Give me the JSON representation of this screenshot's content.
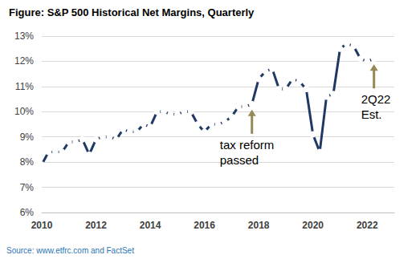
{
  "chart_data": {
    "type": "line",
    "title": "Figure: S&P 500 Historical Net Margins, Quarterly",
    "source": "Source: www.etfrc.com and FactSet",
    "x": [
      2010,
      2010.25,
      2010.5,
      2010.75,
      2011,
      2011.25,
      2011.5,
      2011.75,
      2012,
      2012.25,
      2012.5,
      2012.75,
      2013,
      2013.25,
      2013.5,
      2013.75,
      2014,
      2014.25,
      2014.5,
      2014.75,
      2015,
      2015.25,
      2015.5,
      2015.75,
      2016,
      2016.25,
      2016.5,
      2016.75,
      2017,
      2017.25,
      2017.5,
      2017.75,
      2018,
      2018.25,
      2018.5,
      2018.75,
      2019,
      2019.25,
      2019.5,
      2019.75,
      2020,
      2020.25,
      2020.5,
      2020.75,
      2021,
      2021.25,
      2021.5,
      2021.75,
      2022,
      2022.25
    ],
    "values": [
      7.9,
      8.4,
      8.4,
      8.4,
      8.8,
      8.8,
      8.9,
      8.3,
      8.9,
      9.0,
      9.0,
      8.9,
      9.3,
      9.2,
      9.2,
      9.5,
      9.4,
      10.0,
      10.0,
      9.9,
      9.9,
      10.0,
      10.0,
      9.5,
      9.2,
      9.5,
      9.5,
      9.6,
      9.8,
      10.2,
      10.2,
      10.3,
      11.3,
      11.6,
      11.7,
      10.9,
      10.9,
      11.3,
      11.2,
      10.9,
      9.1,
      8.4,
      10.6,
      10.7,
      12.5,
      12.7,
      12.6,
      12.1,
      12.0,
      12.1
    ],
    "color": "#1f3864",
    "marker": "circle",
    "xlim": [
      2010,
      2023
    ],
    "xticks": [
      2010,
      2012,
      2014,
      2016,
      2018,
      2020,
      2022
    ],
    "ylim": [
      6,
      13
    ],
    "yticks": [
      {
        "value": 6,
        "label": "6%"
      },
      {
        "value": 7,
        "label": "7%"
      },
      {
        "value": 8,
        "label": "8%"
      },
      {
        "value": 9,
        "label": "9%"
      },
      {
        "value": 10,
        "label": "10%"
      },
      {
        "value": 11,
        "label": "11%"
      },
      {
        "value": 12,
        "label": "12%"
      },
      {
        "value": 13,
        "label": "13%"
      }
    ],
    "grid": true,
    "annotations": [
      {
        "text": "tax reform\npassed",
        "x": 2017.75
      },
      {
        "text": "2Q22\nEst.",
        "x": 2022.25
      }
    ]
  }
}
